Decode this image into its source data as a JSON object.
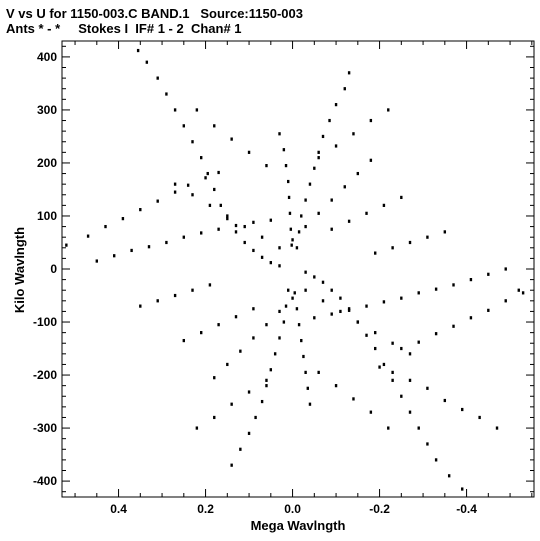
{
  "title_line1": "V vs U for 1150-003.C BAND.1   Source:1150-003",
  "title_line2": "Ants * - *     Stokes I  IF# 1 - 2  Chan# 1",
  "chart_data": {
    "type": "scatter",
    "title": "V vs U for 1150-003.C BAND.1   Source:1150-003",
    "subtitle": "Ants * - *     Stokes I  IF# 1 - 2  Chan# 1",
    "xlabel": "Mega Wavlngth",
    "ylabel": "Kilo Wavlngth",
    "xlim": [
      0.53,
      -0.555
    ],
    "ylim": [
      -430,
      430
    ],
    "x_reversed": true,
    "xticks": [
      0.4,
      0.2,
      0.0,
      -0.2,
      -0.4
    ],
    "xtick_labels": [
      "0.4",
      "0.2",
      "0.0",
      "-0.2",
      "-0.4"
    ],
    "yticks": [
      400,
      300,
      200,
      100,
      0,
      -100,
      -200,
      -300,
      -400
    ],
    "ytick_labels": [
      "400",
      "300",
      "200",
      "100",
      "0",
      "-100",
      "-200",
      "-300",
      "-400"
    ],
    "grid": false,
    "legend": "none",
    "marker_color": "#000000",
    "description_of_pattern": "",
    "series": [
      {
        "values": [
          [
            0.355,
            412
          ],
          [
            0.335,
            390
          ],
          [
            0.31,
            360
          ],
          [
            0.29,
            330
          ],
          [
            0.27,
            300
          ],
          [
            0.25,
            270
          ],
          [
            0.23,
            240
          ],
          [
            0.21,
            210
          ],
          [
            0.195,
            180
          ],
          [
            0.18,
            150
          ],
          [
            0.165,
            120
          ],
          [
            0.15,
            95
          ],
          [
            0.13,
            70
          ],
          [
            0.11,
            50
          ],
          [
            0.09,
            35
          ],
          [
            0.07,
            22
          ],
          [
            0.05,
            12
          ],
          [
            0.03,
            6
          ],
          [
            -0.03,
            -6
          ],
          [
            -0.05,
            -15
          ],
          [
            -0.07,
            -25
          ],
          [
            -0.09,
            -40
          ],
          [
            -0.11,
            -55
          ],
          [
            -0.13,
            -75
          ],
          [
            -0.15,
            -100
          ],
          [
            -0.17,
            -125
          ],
          [
            -0.19,
            -150
          ],
          [
            -0.21,
            -180
          ],
          [
            -0.23,
            -210
          ],
          [
            -0.25,
            -240
          ],
          [
            -0.27,
            -270
          ],
          [
            -0.29,
            -300
          ],
          [
            -0.31,
            -330
          ],
          [
            -0.33,
            -360
          ],
          [
            -0.36,
            -390
          ],
          [
            -0.39,
            -415
          ],
          [
            0.52,
            45
          ],
          [
            0.47,
            62
          ],
          [
            0.43,
            80
          ],
          [
            0.39,
            95
          ],
          [
            0.35,
            112
          ],
          [
            0.31,
            128
          ],
          [
            0.27,
            145
          ],
          [
            0.24,
            158
          ],
          [
            0.2,
            172
          ],
          [
            0.17,
            182
          ],
          [
            -0.2,
            -185
          ],
          [
            -0.23,
            -195
          ],
          [
            -0.27,
            -210
          ],
          [
            -0.31,
            -225
          ],
          [
            -0.35,
            -248
          ],
          [
            -0.39,
            -265
          ],
          [
            -0.43,
            -280
          ],
          [
            -0.47,
            -300
          ],
          [
            -0.53,
            -45
          ],
          [
            -0.49,
            -60
          ],
          [
            -0.45,
            -78
          ],
          [
            -0.41,
            -92
          ],
          [
            -0.37,
            -108
          ],
          [
            -0.33,
            -122
          ],
          [
            -0.29,
            -138
          ],
          [
            -0.25,
            -150
          ],
          [
            0.45,
            15
          ],
          [
            0.41,
            25
          ],
          [
            0.37,
            35
          ],
          [
            0.33,
            42
          ],
          [
            0.29,
            50
          ],
          [
            0.25,
            60
          ],
          [
            0.21,
            68
          ],
          [
            0.17,
            75
          ],
          [
            0.13,
            82
          ],
          [
            0.09,
            88
          ],
          [
            0.05,
            92
          ],
          [
            -0.05,
            -92
          ],
          [
            -0.09,
            -85
          ],
          [
            -0.13,
            -78
          ],
          [
            -0.17,
            -70
          ],
          [
            -0.21,
            -62
          ],
          [
            -0.25,
            -55
          ],
          [
            -0.29,
            -45
          ],
          [
            -0.33,
            -38
          ],
          [
            -0.37,
            -30
          ],
          [
            -0.41,
            -20
          ],
          [
            -0.45,
            -10
          ],
          [
            -0.49,
            0
          ],
          [
            -0.52,
            -40
          ],
          [
            -0.13,
            370
          ],
          [
            -0.12,
            340
          ],
          [
            -0.1,
            310
          ],
          [
            -0.085,
            280
          ],
          [
            -0.07,
            250
          ],
          [
            -0.06,
            220
          ],
          [
            -0.05,
            190
          ],
          [
            -0.04,
            160
          ],
          [
            -0.03,
            130
          ],
          [
            -0.02,
            100
          ],
          [
            -0.015,
            70
          ],
          [
            -0.01,
            40
          ],
          [
            0.01,
            -40
          ],
          [
            0.015,
            -70
          ],
          [
            0.02,
            -100
          ],
          [
            0.03,
            -130
          ],
          [
            0.04,
            -160
          ],
          [
            0.05,
            -190
          ],
          [
            0.06,
            -220
          ],
          [
            0.07,
            -250
          ],
          [
            0.085,
            -280
          ],
          [
            0.1,
            -310
          ],
          [
            0.12,
            -340
          ],
          [
            0.14,
            -370
          ],
          [
            0.03,
            255
          ],
          [
            0.02,
            225
          ],
          [
            0.015,
            195
          ],
          [
            0.01,
            165
          ],
          [
            0.008,
            135
          ],
          [
            0.006,
            105
          ],
          [
            0.004,
            75
          ],
          [
            0.002,
            45
          ],
          [
            -0.005,
            -45
          ],
          [
            -0.01,
            -75
          ],
          [
            -0.015,
            -105
          ],
          [
            -0.02,
            -135
          ],
          [
            -0.025,
            -165
          ],
          [
            -0.03,
            -195
          ],
          [
            -0.035,
            -225
          ],
          [
            -0.04,
            -255
          ],
          [
            -0.18,
            205
          ],
          [
            -0.15,
            180
          ],
          [
            -0.12,
            155
          ],
          [
            -0.09,
            130
          ],
          [
            -0.06,
            105
          ],
          [
            -0.03,
            80
          ],
          [
            0.0,
            55
          ],
          [
            0.18,
            -205
          ],
          [
            0.15,
            -180
          ],
          [
            0.12,
            -155
          ],
          [
            0.09,
            -130
          ],
          [
            0.06,
            -105
          ],
          [
            0.03,
            -80
          ],
          [
            0.0,
            -55
          ],
          [
            0.27,
            160
          ],
          [
            0.23,
            140
          ],
          [
            0.19,
            120
          ],
          [
            0.15,
            100
          ],
          [
            0.11,
            80
          ],
          [
            0.07,
            60
          ],
          [
            0.03,
            40
          ],
          [
            -0.27,
            -160
          ],
          [
            -0.23,
            -140
          ],
          [
            -0.19,
            -120
          ],
          [
            -0.15,
            -100
          ],
          [
            -0.11,
            -80
          ],
          [
            -0.07,
            -60
          ],
          [
            -0.03,
            -40
          ],
          [
            0.22,
            300
          ],
          [
            0.18,
            270
          ],
          [
            0.14,
            245
          ],
          [
            0.1,
            220
          ],
          [
            0.06,
            195
          ],
          [
            -0.06,
            -195
          ],
          [
            -0.1,
            -220
          ],
          [
            -0.14,
            -245
          ],
          [
            -0.18,
            -270
          ],
          [
            -0.22,
            -300
          ],
          [
            -0.22,
            300
          ],
          [
            -0.18,
            280
          ],
          [
            -0.14,
            255
          ],
          [
            -0.1,
            232
          ],
          [
            -0.06,
            210
          ],
          [
            0.06,
            -210
          ],
          [
            0.1,
            -232
          ],
          [
            0.14,
            -255
          ],
          [
            0.18,
            -280
          ],
          [
            0.22,
            -300
          ],
          [
            0.35,
            -70
          ],
          [
            0.31,
            -60
          ],
          [
            0.27,
            -50
          ],
          [
            0.23,
            -40
          ],
          [
            0.19,
            -30
          ],
          [
            -0.35,
            70
          ],
          [
            -0.31,
            60
          ],
          [
            -0.27,
            50
          ],
          [
            -0.23,
            40
          ],
          [
            -0.19,
            30
          ],
          [
            0.25,
            -135
          ],
          [
            0.21,
            -120
          ],
          [
            0.17,
            -105
          ],
          [
            0.13,
            -90
          ],
          [
            0.09,
            -75
          ],
          [
            -0.25,
            135
          ],
          [
            -0.21,
            120
          ],
          [
            -0.17,
            105
          ],
          [
            -0.13,
            90
          ],
          [
            -0.09,
            75
          ]
        ]
      }
    ]
  }
}
